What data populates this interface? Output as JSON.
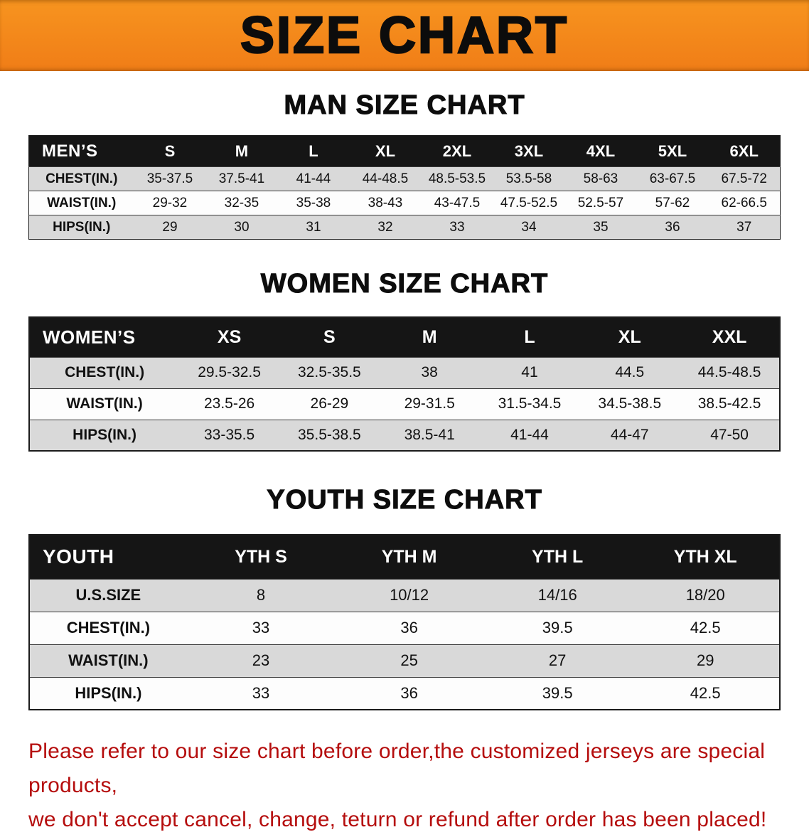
{
  "banner": {
    "title": "SIZE CHART",
    "bg": "#f5831f"
  },
  "colors": {
    "banner_bg": "#f5831f",
    "table_header_bg": "#151515",
    "row_alt_gray": "#d9d9d9",
    "row_white": "#fdfdfd",
    "disclaimer_red": "#b50d0d"
  },
  "sections": [
    {
      "id": "men",
      "heading": "MAN SIZE CHART",
      "table": {
        "header": [
          "MEN’S",
          "S",
          "M",
          "L",
          "XL",
          "2XL",
          "3XL",
          "4XL",
          "5XL",
          "6XL"
        ],
        "rows": [
          [
            "CHEST(IN.)",
            "35-37.5",
            "37.5-41",
            "41-44",
            "44-48.5",
            "48.5-53.5",
            "53.5-58",
            "58-63",
            "63-67.5",
            "67.5-72"
          ],
          [
            "WAIST(IN.)",
            "29-32",
            "32-35",
            "35-38",
            "38-43",
            "43-47.5",
            "47.5-52.5",
            "52.5-57",
            "57-62",
            "62-66.5"
          ],
          [
            "HIPS(IN.)",
            "29",
            "30",
            "31",
            "32",
            "33",
            "34",
            "35",
            "36",
            "37"
          ]
        ]
      }
    },
    {
      "id": "women",
      "heading": "WOMEN SIZE CHART",
      "table": {
        "header": [
          "WOMEN’S",
          "XS",
          "S",
          "M",
          "L",
          "XL",
          "XXL"
        ],
        "rows": [
          [
            "CHEST(IN.)",
            "29.5-32.5",
            "32.5-35.5",
            "38",
            "41",
            "44.5",
            "44.5-48.5"
          ],
          [
            "WAIST(IN.)",
            "23.5-26",
            "26-29",
            "29-31.5",
            "31.5-34.5",
            "34.5-38.5",
            "38.5-42.5"
          ],
          [
            "HIPS(IN.)",
            "33-35.5",
            "35.5-38.5",
            "38.5-41",
            "41-44",
            "44-47",
            "47-50"
          ]
        ]
      }
    },
    {
      "id": "youth",
      "heading": "YOUTH SIZE CHART",
      "table": {
        "header": [
          "YOUTH",
          "YTH S",
          "YTH M",
          "YTH L",
          "YTH XL"
        ],
        "rows": [
          [
            "U.S.SIZE",
            "8",
            "10/12",
            "14/16",
            "18/20"
          ],
          [
            "CHEST(IN.)",
            "33",
            "36",
            "39.5",
            "42.5"
          ],
          [
            "WAIST(IN.)",
            "23",
            "25",
            "27",
            "29"
          ],
          [
            "HIPS(IN.)",
            "33",
            "36",
            "39.5",
            "42.5"
          ]
        ]
      }
    }
  ],
  "disclaimer": {
    "line1": "Please refer to our size chart before order,the customized jerseys are special products,",
    "line2": "we don't accept cancel, change, teturn or refund after order has been placed!"
  }
}
